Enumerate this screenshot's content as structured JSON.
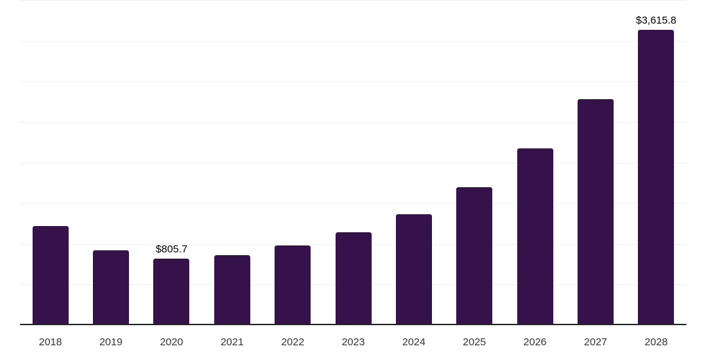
{
  "chart_data": {
    "type": "bar",
    "title": "",
    "xlabel": "",
    "ylabel": "",
    "categories": [
      "2018",
      "2019",
      "2020",
      "2021",
      "2022",
      "2023",
      "2024",
      "2025",
      "2026",
      "2027",
      "2028"
    ],
    "values": [
      1200,
      908,
      805.7,
      846,
      965,
      1125,
      1349,
      1684,
      2154,
      2766,
      3615.8
    ],
    "point_labels": [
      "",
      "",
      "$805.7",
      "",
      "",
      "",
      "",
      "",
      "",
      "",
      "$3,615.8"
    ],
    "ylim": [
      0,
      4000
    ],
    "gridline_step": 500,
    "grid": "horizontal-only",
    "legend": "none",
    "y_axis_tick_labels_visible": false,
    "bar_color": "#36124a",
    "grid_color": "#f2f2f2",
    "axis_line_color": "#262626",
    "tick_label_color": "#333333",
    "value_label_color": "#000000"
  }
}
